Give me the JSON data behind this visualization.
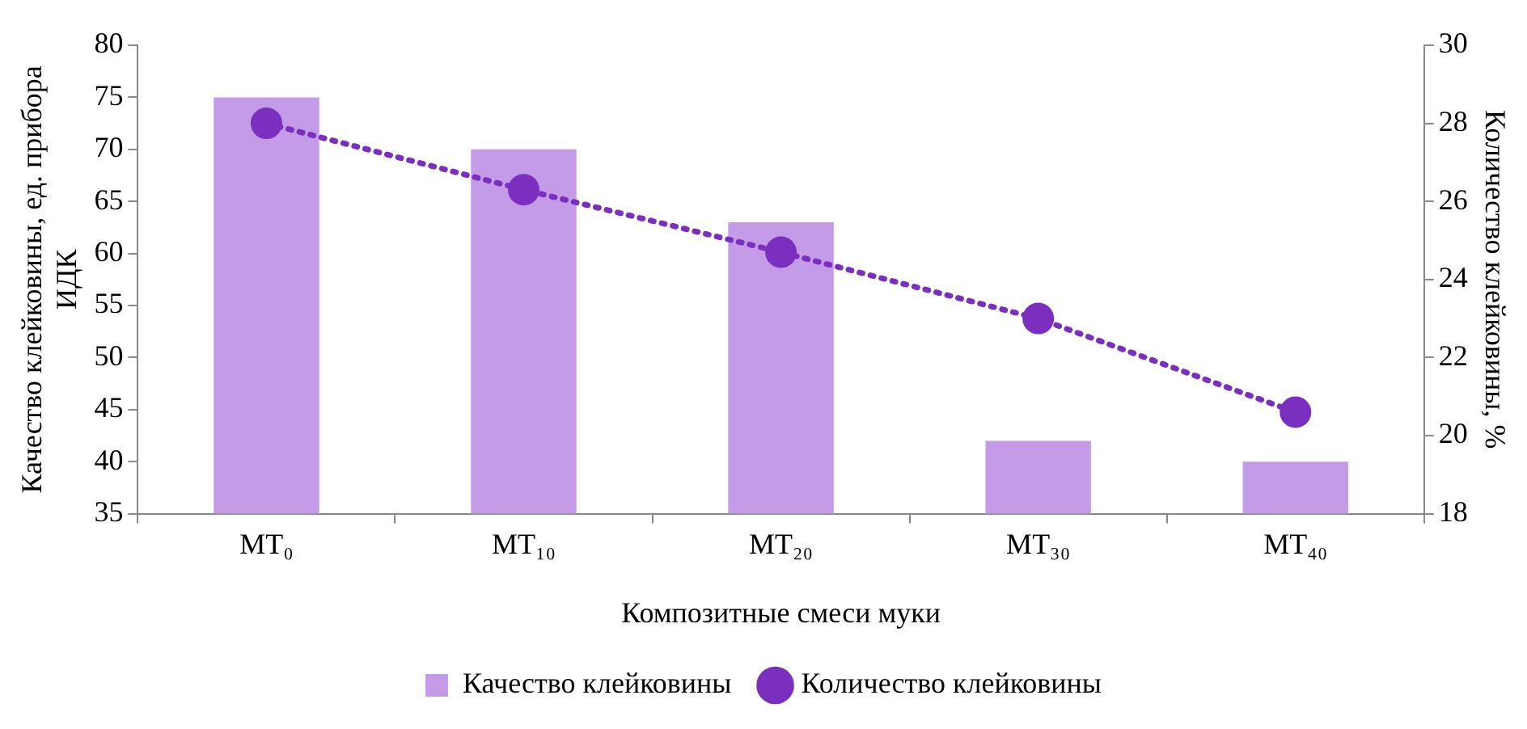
{
  "chart_data": {
    "type": "bar",
    "xlabel": "Композитные смеси муки",
    "ylabel": "Качество клейковины, ед. прибора ИДК",
    "y2label": "Количество клейковины, %",
    "categories": [
      "МТ₀",
      "МТ₁₀",
      "МТ₂₀",
      "МТ₃₀",
      "МТ₄₀"
    ],
    "series": [
      {
        "name": "Качество клейковины",
        "color": "#c39be6",
        "values": [
          75,
          70,
          63,
          42,
          40
        ]
      },
      {
        "name": "Количество клейковины",
        "type": "line",
        "axis": "y2",
        "color": "#7b2fbe",
        "marker": "circle",
        "line_style": "dotted",
        "values": [
          28.0,
          26.3,
          24.7,
          23.0,
          20.6
        ]
      }
    ],
    "ylim": [
      35,
      80
    ],
    "yticks": [
      35,
      40,
      45,
      50,
      55,
      60,
      65,
      70,
      75,
      80
    ],
    "y2lim": [
      18,
      30
    ],
    "y2ticks": [
      18,
      20,
      22,
      24,
      26,
      28,
      30
    ],
    "grid": false,
    "legend": "bottom"
  }
}
